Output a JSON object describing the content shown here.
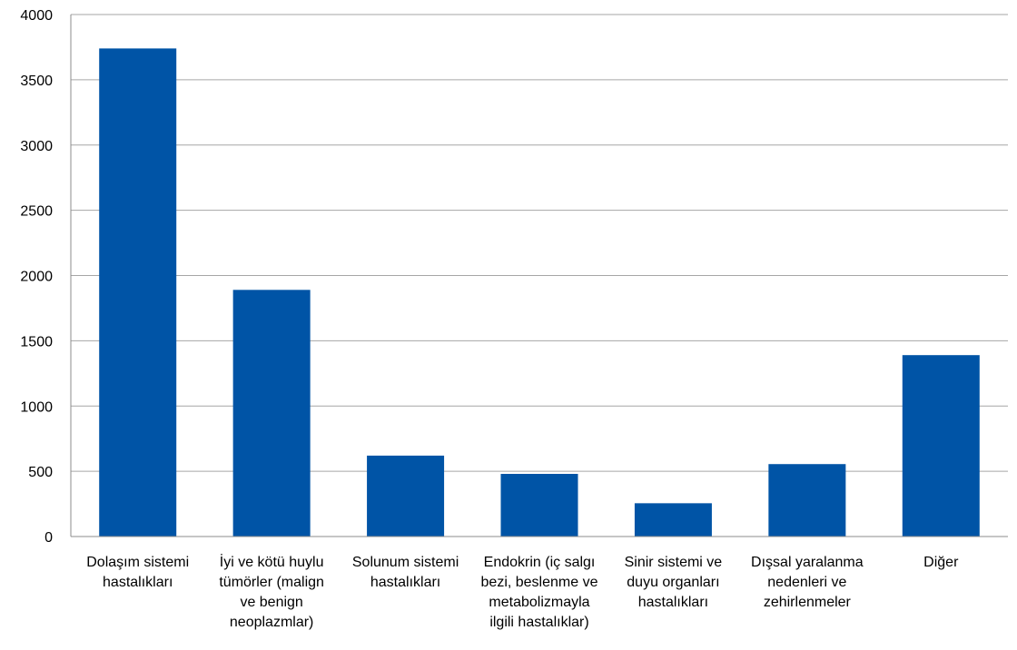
{
  "chart_data": {
    "type": "bar",
    "title": "",
    "xlabel": "",
    "ylabel": "",
    "ylim": [
      0,
      4000
    ],
    "yticks": [
      0,
      500,
      1000,
      1500,
      2000,
      2500,
      3000,
      3500,
      4000
    ],
    "grid": true,
    "legend": "none",
    "bar_color": "#0054A6",
    "grid_color": "#A6A6A6",
    "axis_color": "#8C8C8C",
    "categories": [
      [
        "Dolaşım sistemi",
        "hastalıkları"
      ],
      [
        "İyi ve kötü huylu",
        "tümörler (malign",
        "ve benign",
        "neoplazmlar)"
      ],
      [
        "Solunum sistemi",
        "hastalıkları"
      ],
      [
        "Endokrin (iç salgı",
        "bezi, beslenme ve",
        "metabolizmayla",
        "ilgili hastalıklar)"
      ],
      [
        "Sinir sistemi ve",
        "duyu organları",
        "hastalıkları"
      ],
      [
        "Dışsal yaralanma",
        "nedenleri ve",
        "zehirlenmeler"
      ],
      [
        "Diğer"
      ]
    ],
    "values": [
      3740,
      1890,
      620,
      480,
      255,
      555,
      1390
    ]
  }
}
